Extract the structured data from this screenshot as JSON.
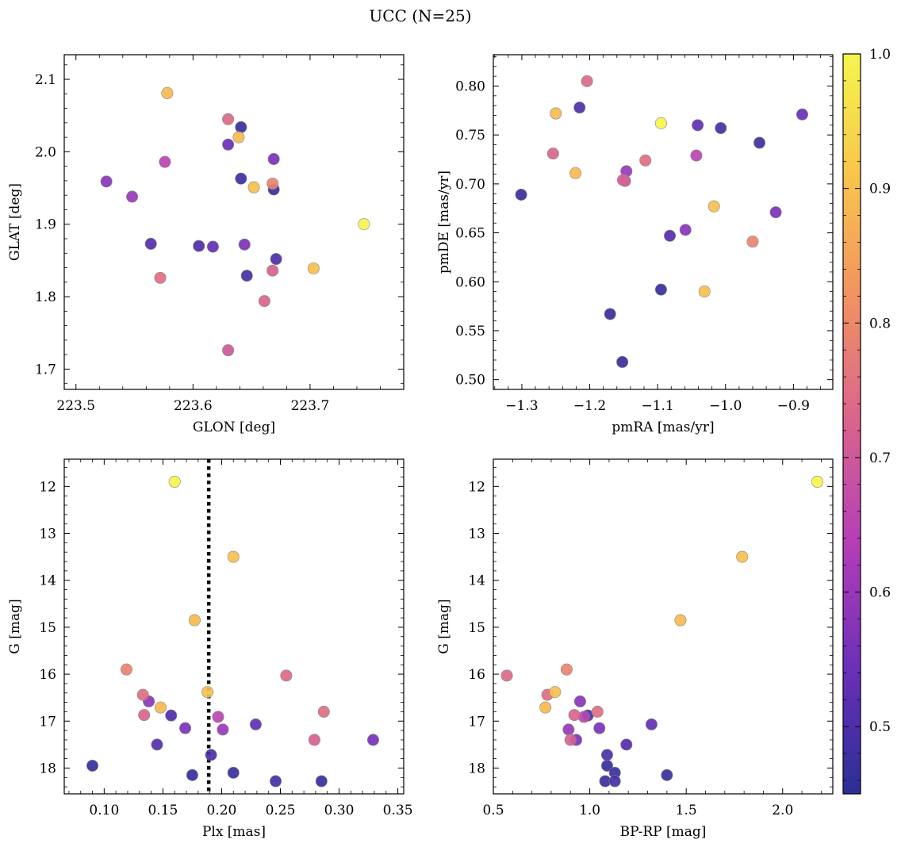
{
  "figure": {
    "title": "UCC (N=25)"
  },
  "colors": {
    "axis": "#000000",
    "marker_edge": "#888888",
    "vline": "#000000"
  },
  "colorbar": {
    "range": [
      0.45,
      1.0
    ],
    "ticks": [
      0.5,
      0.6,
      0.7,
      0.8,
      0.9,
      1.0
    ],
    "tick_labels": [
      "0.5",
      "0.6",
      "0.7",
      "0.8",
      "0.9",
      "1.0"
    ],
    "colormap": "plasma",
    "colormap_stops": [
      "#2a2f95",
      "#6a2fb8",
      "#b33db8",
      "#d8638f",
      "#f19063",
      "#f8c44c",
      "#f5f54e"
    ]
  },
  "chart_data": [
    {
      "type": "scatter",
      "title": "",
      "xlabel": "GLON [deg]",
      "ylabel": "GLAT [deg]",
      "xlim": [
        223.49,
        223.78
      ],
      "ylim": [
        1.672,
        2.134
      ],
      "xticks": [
        223.5,
        223.6,
        223.7
      ],
      "xtick_labels": [
        "223.5",
        "223.6",
        "223.7"
      ],
      "yticks": [
        1.7,
        1.8,
        1.9,
        2.0,
        2.1
      ],
      "ytick_labels": [
        "1.7",
        "1.8",
        "1.9",
        "2.0",
        "2.1"
      ],
      "invert_y": false,
      "points": [
        {
          "x": 223.746,
          "y": 1.9,
          "c": 1.0
        },
        {
          "x": 223.578,
          "y": 2.081,
          "c": 0.89
        },
        {
          "x": 223.639,
          "y": 2.02,
          "c": 0.89
        },
        {
          "x": 223.652,
          "y": 1.951,
          "c": 0.9
        },
        {
          "x": 223.703,
          "y": 1.839,
          "c": 0.9
        },
        {
          "x": 223.668,
          "y": 1.956,
          "c": 0.79
        },
        {
          "x": 223.572,
          "y": 1.826,
          "c": 0.75
        },
        {
          "x": 223.63,
          "y": 2.045,
          "c": 0.74
        },
        {
          "x": 223.661,
          "y": 1.794,
          "c": 0.73
        },
        {
          "x": 223.668,
          "y": 1.836,
          "c": 0.72
        },
        {
          "x": 223.63,
          "y": 1.726,
          "c": 0.7
        },
        {
          "x": 223.576,
          "y": 1.986,
          "c": 0.65
        },
        {
          "x": 223.548,
          "y": 1.938,
          "c": 0.6
        },
        {
          "x": 223.526,
          "y": 1.959,
          "c": 0.58
        },
        {
          "x": 223.644,
          "y": 1.872,
          "c": 0.56
        },
        {
          "x": 223.669,
          "y": 1.99,
          "c": 0.56
        },
        {
          "x": 223.63,
          "y": 2.01,
          "c": 0.54
        },
        {
          "x": 223.617,
          "y": 1.869,
          "c": 0.53
        },
        {
          "x": 223.564,
          "y": 1.873,
          "c": 0.51
        },
        {
          "x": 223.605,
          "y": 1.87,
          "c": 0.5
        },
        {
          "x": 223.671,
          "y": 1.852,
          "c": 0.5
        },
        {
          "x": 223.646,
          "y": 1.829,
          "c": 0.49
        },
        {
          "x": 223.641,
          "y": 1.963,
          "c": 0.48
        },
        {
          "x": 223.641,
          "y": 2.034,
          "c": 0.47
        },
        {
          "x": 223.669,
          "y": 1.948,
          "c": 0.47
        }
      ]
    },
    {
      "type": "scatter",
      "title": "",
      "xlabel": "pmRA [mas/yr]",
      "ylabel": "pmDE [mas/yr]",
      "xlim": [
        -1.342,
        -0.842
      ],
      "ylim": [
        0.49,
        0.832
      ],
      "xticks": [
        -1.3,
        -1.2,
        -1.1,
        -1.0,
        -0.9
      ],
      "xtick_labels": [
        "−1.3",
        "−1.2",
        "−1.1",
        "−1.0",
        "−0.9"
      ],
      "yticks": [
        0.5,
        0.55,
        0.6,
        0.65,
        0.7,
        0.75,
        0.8
      ],
      "ytick_labels": [
        "0.50",
        "0.55",
        "0.60",
        "0.65",
        "0.70",
        "0.75",
        "0.80"
      ],
      "invert_y": false,
      "points": [
        {
          "x": -1.095,
          "y": 0.762,
          "c": 1.0
        },
        {
          "x": -1.25,
          "y": 0.772,
          "c": 0.89
        },
        {
          "x": -1.221,
          "y": 0.711,
          "c": 0.89
        },
        {
          "x": -1.017,
          "y": 0.677,
          "c": 0.9
        },
        {
          "x": -1.031,
          "y": 0.59,
          "c": 0.9
        },
        {
          "x": -0.96,
          "y": 0.641,
          "c": 0.79
        },
        {
          "x": -1.204,
          "y": 0.805,
          "c": 0.74
        },
        {
          "x": -1.254,
          "y": 0.731,
          "c": 0.73
        },
        {
          "x": -1.118,
          "y": 0.724,
          "c": 0.75
        },
        {
          "x": -1.151,
          "y": 0.704,
          "c": 0.72
        },
        {
          "x": -1.148,
          "y": 0.703,
          "c": 0.7
        },
        {
          "x": -1.043,
          "y": 0.729,
          "c": 0.65
        },
        {
          "x": -1.146,
          "y": 0.713,
          "c": 0.6
        },
        {
          "x": -1.059,
          "y": 0.653,
          "c": 0.58
        },
        {
          "x": -0.926,
          "y": 0.671,
          "c": 0.56
        },
        {
          "x": -0.887,
          "y": 0.771,
          "c": 0.54
        },
        {
          "x": -1.041,
          "y": 0.76,
          "c": 0.53
        },
        {
          "x": -1.082,
          "y": 0.647,
          "c": 0.51
        },
        {
          "x": -1.215,
          "y": 0.778,
          "c": 0.5
        },
        {
          "x": -1.007,
          "y": 0.757,
          "c": 0.49
        },
        {
          "x": -0.95,
          "y": 0.742,
          "c": 0.48
        },
        {
          "x": -1.301,
          "y": 0.689,
          "c": 0.47
        },
        {
          "x": -1.095,
          "y": 0.592,
          "c": 0.47
        },
        {
          "x": -1.17,
          "y": 0.567,
          "c": 0.47
        },
        {
          "x": -1.152,
          "y": 0.518,
          "c": 0.47
        }
      ]
    },
    {
      "type": "scatter",
      "title": "",
      "xlabel": "Plx [mas]",
      "ylabel": "G [mag]",
      "xlim": [
        0.066,
        0.355
      ],
      "ylim": [
        18.55,
        11.42
      ],
      "xticks": [
        0.1,
        0.15,
        0.2,
        0.25,
        0.3,
        0.35
      ],
      "xtick_labels": [
        "0.10",
        "0.15",
        "0.20",
        "0.25",
        "0.30",
        "0.35"
      ],
      "yticks": [
        12,
        13,
        14,
        15,
        16,
        17,
        18
      ],
      "ytick_labels": [
        "12",
        "13",
        "14",
        "15",
        "16",
        "17",
        "18"
      ],
      "invert_y": true,
      "vline": {
        "x": 0.189,
        "style": "dotted"
      },
      "points": [
        {
          "x": 0.16,
          "y": 11.9,
          "c": 1.0
        },
        {
          "x": 0.21,
          "y": 13.5,
          "c": 0.9
        },
        {
          "x": 0.177,
          "y": 14.85,
          "c": 0.89
        },
        {
          "x": 0.188,
          "y": 16.38,
          "c": 0.9
        },
        {
          "x": 0.148,
          "y": 16.71,
          "c": 0.89
        },
        {
          "x": 0.119,
          "y": 15.9,
          "c": 0.79
        },
        {
          "x": 0.255,
          "y": 16.03,
          "c": 0.74
        },
        {
          "x": 0.287,
          "y": 16.8,
          "c": 0.75
        },
        {
          "x": 0.133,
          "y": 16.44,
          "c": 0.75
        },
        {
          "x": 0.134,
          "y": 16.87,
          "c": 0.73
        },
        {
          "x": 0.279,
          "y": 17.4,
          "c": 0.72
        },
        {
          "x": 0.197,
          "y": 16.91,
          "c": 0.65
        },
        {
          "x": 0.201,
          "y": 17.18,
          "c": 0.6
        },
        {
          "x": 0.138,
          "y": 16.58,
          "c": 0.58
        },
        {
          "x": 0.169,
          "y": 17.15,
          "c": 0.56
        },
        {
          "x": 0.329,
          "y": 17.4,
          "c": 0.56
        },
        {
          "x": 0.229,
          "y": 17.07,
          "c": 0.53
        },
        {
          "x": 0.145,
          "y": 17.5,
          "c": 0.51
        },
        {
          "x": 0.157,
          "y": 16.88,
          "c": 0.5
        },
        {
          "x": 0.191,
          "y": 17.72,
          "c": 0.5
        },
        {
          "x": 0.246,
          "y": 18.28,
          "c": 0.49
        },
        {
          "x": 0.09,
          "y": 17.95,
          "c": 0.47
        },
        {
          "x": 0.175,
          "y": 18.15,
          "c": 0.47
        },
        {
          "x": 0.21,
          "y": 18.1,
          "c": 0.47
        },
        {
          "x": 0.285,
          "y": 18.28,
          "c": 0.47
        }
      ]
    },
    {
      "type": "scatter",
      "title": "",
      "xlabel": "BP-RP [mag]",
      "ylabel": "G [mag]",
      "xlim": [
        0.5,
        2.26
      ],
      "ylim": [
        18.55,
        11.42
      ],
      "xticks": [
        0.5,
        1.0,
        1.5,
        2.0
      ],
      "xtick_labels": [
        "0.5",
        "1.0",
        "1.5",
        "2.0"
      ],
      "yticks": [
        12,
        13,
        14,
        15,
        16,
        17,
        18
      ],
      "ytick_labels": [
        "12",
        "13",
        "14",
        "15",
        "16",
        "17",
        "18"
      ],
      "invert_y": true,
      "points": [
        {
          "x": 2.18,
          "y": 11.9,
          "c": 1.0
        },
        {
          "x": 1.79,
          "y": 13.5,
          "c": 0.9
        },
        {
          "x": 1.47,
          "y": 14.85,
          "c": 0.89
        },
        {
          "x": 0.82,
          "y": 16.38,
          "c": 0.9
        },
        {
          "x": 0.77,
          "y": 16.71,
          "c": 0.89
        },
        {
          "x": 0.88,
          "y": 15.9,
          "c": 0.79
        },
        {
          "x": 0.57,
          "y": 16.03,
          "c": 0.74
        },
        {
          "x": 0.78,
          "y": 16.44,
          "c": 0.75
        },
        {
          "x": 1.04,
          "y": 16.8,
          "c": 0.75
        },
        {
          "x": 0.92,
          "y": 16.87,
          "c": 0.73
        },
        {
          "x": 0.9,
          "y": 17.4,
          "c": 0.72
        },
        {
          "x": 0.97,
          "y": 16.91,
          "c": 0.65
        },
        {
          "x": 0.89,
          "y": 17.18,
          "c": 0.6
        },
        {
          "x": 0.95,
          "y": 16.58,
          "c": 0.58
        },
        {
          "x": 1.05,
          "y": 17.15,
          "c": 0.56
        },
        {
          "x": 0.93,
          "y": 17.4,
          "c": 0.56
        },
        {
          "x": 1.32,
          "y": 17.07,
          "c": 0.53
        },
        {
          "x": 1.19,
          "y": 17.5,
          "c": 0.51
        },
        {
          "x": 0.99,
          "y": 16.88,
          "c": 0.5
        },
        {
          "x": 1.09,
          "y": 17.72,
          "c": 0.5
        },
        {
          "x": 1.13,
          "y": 18.28,
          "c": 0.49
        },
        {
          "x": 1.09,
          "y": 17.95,
          "c": 0.47
        },
        {
          "x": 1.4,
          "y": 18.15,
          "c": 0.47
        },
        {
          "x": 1.13,
          "y": 18.1,
          "c": 0.47
        },
        {
          "x": 1.08,
          "y": 18.28,
          "c": 0.47
        }
      ]
    }
  ]
}
